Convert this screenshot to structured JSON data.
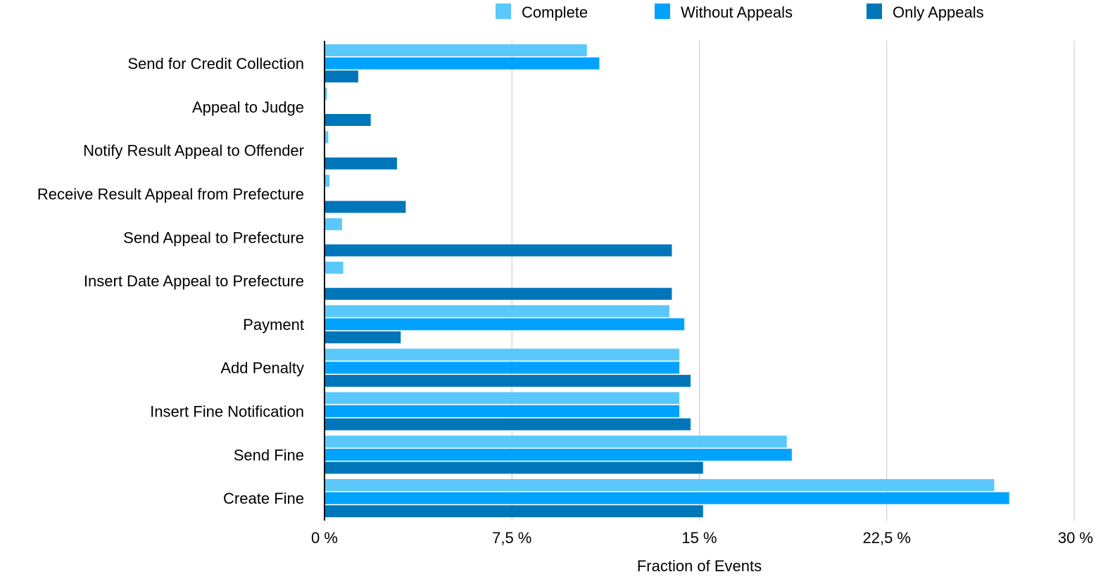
{
  "chart_data": {
    "type": "bar",
    "orientation": "horizontal",
    "categories": [
      "Send for Credit Collection",
      "Appeal to Judge",
      "Notify Result Appeal to Offender",
      "Receive Result Appeal from Prefecture",
      "Send Appeal to Prefecture",
      "Insert Date Appeal to Prefecture",
      "Payment",
      "Add Penalty",
      "Insert Fine Notification",
      "Send Fine",
      "Create Fine"
    ],
    "series": [
      {
        "name": "Complete",
        "color": "#5ac8fa",
        "values": [
          10.5,
          0.1,
          0.15,
          0.2,
          0.7,
          0.75,
          13.8,
          14.2,
          14.2,
          18.5,
          26.8
        ]
      },
      {
        "name": "Without Appeals",
        "color": "#00a2ff",
        "values": [
          11.0,
          0,
          0,
          0,
          0,
          0,
          14.4,
          14.2,
          14.2,
          18.7,
          27.4
        ]
      },
      {
        "name": "Only Appeals",
        "color": "#0076ba",
        "values": [
          1.35,
          1.85,
          2.9,
          3.25,
          13.9,
          13.9,
          3.05,
          14.65,
          14.65,
          15.15,
          15.15
        ]
      }
    ],
    "title": "",
    "xlabel": "Fraction of Events",
    "ylabel": "",
    "xlim": [
      0,
      30
    ],
    "xticks": [
      0,
      7.5,
      15,
      22.5,
      30
    ],
    "xtick_labels": [
      "0 %",
      "7,5 %",
      "15 %",
      "22,5 %",
      "30 %"
    ],
    "grid": "vertical",
    "legend_position": "top"
  }
}
